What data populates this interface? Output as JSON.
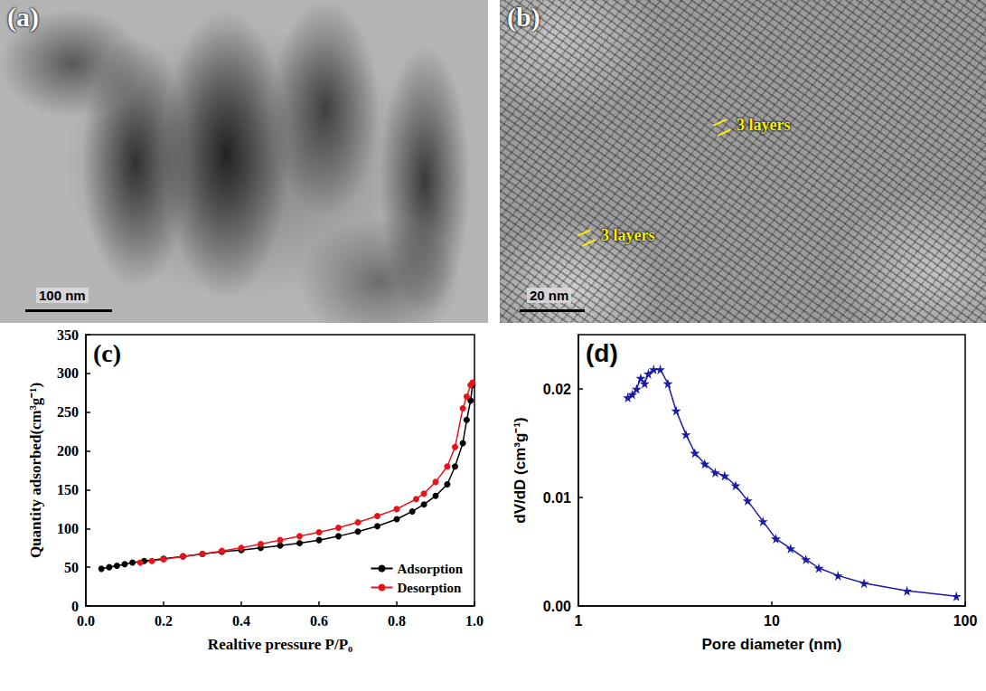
{
  "images": [
    {
      "label": "(a)",
      "scale_bar": "100 nm"
    },
    {
      "label": "(b)",
      "scale_bar": "20 nm",
      "annotations": [
        "3 layers",
        "3 layers"
      ]
    }
  ],
  "chart_data": [
    {
      "label": "(c)",
      "type": "line",
      "x_label": "Realtive pressure P/P₀",
      "y_label": "Quantity adsorbed(cm³g⁻¹)",
      "xlim": [
        0,
        1
      ],
      "xticks": [
        {
          "value": 0,
          "label": "0.0"
        },
        {
          "value": 0.2,
          "label": "0.2"
        },
        {
          "value": 0.4,
          "label": "0.4"
        },
        {
          "value": 0.6,
          "label": "0.6"
        },
        {
          "value": 0.8,
          "label": "0.8"
        },
        {
          "value": 1,
          "label": "1.0"
        }
      ],
      "ylim": [
        0,
        350
      ],
      "yticks": [
        0,
        50,
        100,
        150,
        200,
        250,
        300,
        350
      ],
      "grid": false,
      "legend": "lower right",
      "series": [
        {
          "name": "Adsorption",
          "color": "#000000",
          "marker": "circle",
          "line_style": "solid",
          "x": [
            0.04,
            0.06,
            0.08,
            0.1,
            0.12,
            0.15,
            0.2,
            0.25,
            0.3,
            0.35,
            0.4,
            0.45,
            0.5,
            0.55,
            0.6,
            0.65,
            0.7,
            0.75,
            0.8,
            0.84,
            0.87,
            0.9,
            0.93,
            0.95,
            0.97,
            0.98,
            0.99,
            0.995
          ],
          "values": [
            48,
            50,
            52,
            54,
            56,
            58,
            61,
            64,
            67,
            70,
            72,
            75,
            78,
            81,
            85,
            90,
            96,
            103,
            112,
            122,
            131,
            142,
            157,
            180,
            210,
            240,
            265,
            285
          ]
        },
        {
          "name": "Desorption",
          "color": "#e8131b",
          "marker": "circle",
          "line_style": "solid",
          "x": [
            0.995,
            0.99,
            0.98,
            0.97,
            0.95,
            0.93,
            0.9,
            0.87,
            0.85,
            0.8,
            0.75,
            0.7,
            0.65,
            0.6,
            0.55,
            0.5,
            0.45,
            0.4,
            0.35,
            0.3,
            0.25,
            0.2,
            0.17,
            0.14
          ],
          "values": [
            288,
            285,
            270,
            255,
            205,
            180,
            160,
            145,
            138,
            125,
            116,
            108,
            101,
            95,
            90,
            85,
            80,
            75,
            71,
            67,
            64,
            60,
            58,
            56
          ]
        }
      ]
    },
    {
      "label": "(d)",
      "type": "line",
      "log": "x",
      "x_label": "Pore diameter (nm)",
      "y_label": "dV/dD (cm³g⁻¹)",
      "xlim": [
        1,
        100
      ],
      "xticks": [
        1,
        10,
        100
      ],
      "ylim": [
        0,
        0.025
      ],
      "yticks": [
        {
          "value": 0,
          "label": "0.00"
        },
        {
          "value": 0.01,
          "label": "0.01"
        },
        {
          "value": 0.02,
          "label": "0.02"
        }
      ],
      "grid": false,
      "series": [
        {
          "color": "#1a1aa6",
          "marker": "star",
          "line_style": "solid",
          "x": [
            1.8,
            1.9,
            2.0,
            2.1,
            2.2,
            2.3,
            2.45,
            2.65,
            2.9,
            3.2,
            3.6,
            4.0,
            4.5,
            5.1,
            5.7,
            6.5,
            7.5,
            9,
            10.5,
            12.5,
            15,
            17.5,
            22,
            30,
            50,
            90
          ],
          "values": [
            0.0192,
            0.0195,
            0.02,
            0.021,
            0.0205,
            0.0214,
            0.0218,
            0.0218,
            0.0205,
            0.018,
            0.0158,
            0.0141,
            0.0131,
            0.0123,
            0.012,
            0.0111,
            0.0097,
            0.0078,
            0.0062,
            0.0053,
            0.0043,
            0.0035,
            0.0028,
            0.0021,
            0.0014,
            0.0009
          ]
        }
      ]
    }
  ]
}
